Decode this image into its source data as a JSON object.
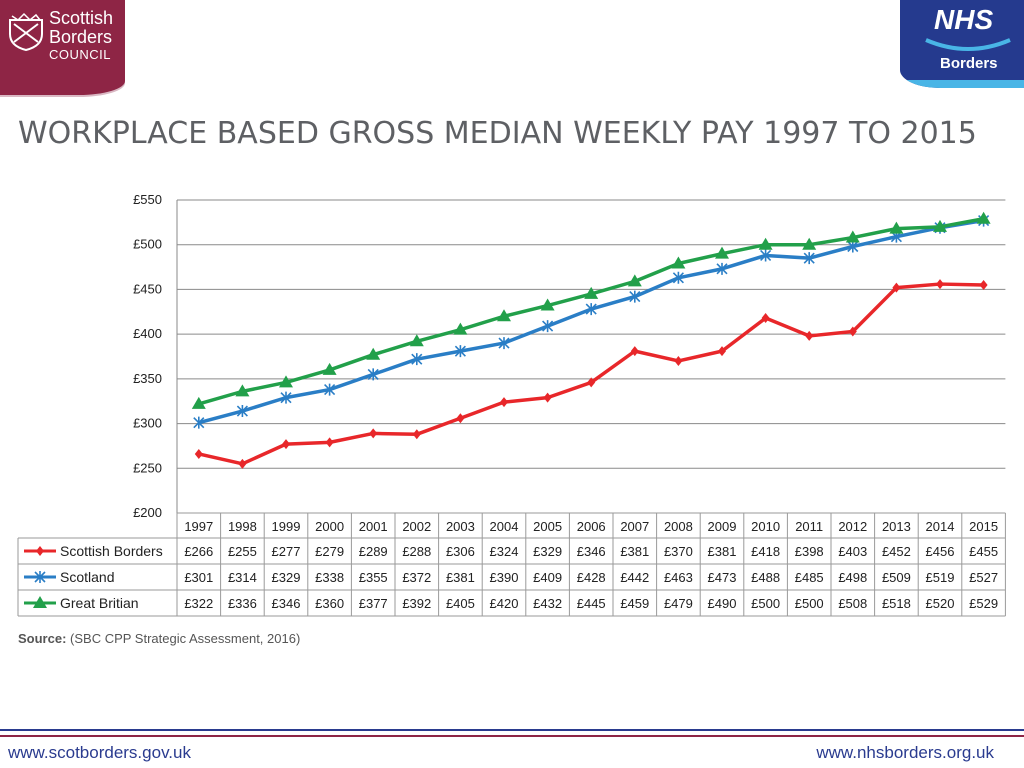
{
  "logos": {
    "sbc": {
      "line1": "Scottish",
      "line2": "Borders",
      "line3": "COUNCIL"
    },
    "nhs": {
      "name": "NHS",
      "sub": "Borders"
    }
  },
  "title": "WORKPLACE BASED GROSS MEDIAN WEEKLY PAY 1997 TO 2015",
  "source": {
    "label": "Source:",
    "text": "(SBC CPP Strategic Assessment, 2016)"
  },
  "footer": {
    "left_link": "www.scotborders.gov.uk",
    "right_link": "www.nhsborders.org.uk"
  },
  "colors": {
    "red": "#e8272a",
    "blue": "#2a7ec6",
    "green": "#22a04a"
  },
  "chart_data": {
    "type": "line",
    "categories": [
      "1997",
      "1998",
      "1999",
      "2000",
      "2001",
      "2002",
      "2003",
      "2004",
      "2005",
      "2006",
      "2007",
      "2008",
      "2009",
      "2010",
      "2011",
      "2012",
      "2013",
      "2014",
      "2015"
    ],
    "ylim": [
      200,
      550
    ],
    "yticks": [
      "£200",
      "£250",
      "£300",
      "£350",
      "£400",
      "£450",
      "£500",
      "£550"
    ],
    "ytick_values": [
      200,
      250,
      300,
      350,
      400,
      450,
      500,
      550
    ],
    "grid": true,
    "series": [
      {
        "name": "Scottish Borders",
        "marker": "diamond",
        "color": "#e8272a",
        "values": [
          266,
          255,
          277,
          279,
          289,
          288,
          306,
          324,
          329,
          346,
          381,
          370,
          381,
          418,
          398,
          403,
          452,
          456,
          455
        ],
        "labels": [
          "£266",
          "£255",
          "£277",
          "£279",
          "£289",
          "£288",
          "£306",
          "£324",
          "£329",
          "£346",
          "£381",
          "£370",
          "£381",
          "£418",
          "£398",
          "£403",
          "£452",
          "£456",
          "£455"
        ]
      },
      {
        "name": "Scotland",
        "marker": "star",
        "color": "#2a7ec6",
        "values": [
          301,
          314,
          329,
          338,
          355,
          372,
          381,
          390,
          409,
          428,
          442,
          463,
          473,
          488,
          485,
          498,
          509,
          519,
          527
        ],
        "labels": [
          "£301",
          "£314",
          "£329",
          "£338",
          "£355",
          "£372",
          "£381",
          "£390",
          "£409",
          "£428",
          "£442",
          "£463",
          "£473",
          "£488",
          "£485",
          "£498",
          "£509",
          "£519",
          "£527"
        ]
      },
      {
        "name": "Great Britian",
        "marker": "triangle",
        "color": "#22a04a",
        "values": [
          322,
          336,
          346,
          360,
          377,
          392,
          405,
          420,
          432,
          445,
          459,
          479,
          490,
          500,
          500,
          508,
          518,
          520,
          529
        ],
        "labels": [
          "£322",
          "£336",
          "£346",
          "£360",
          "£377",
          "£392",
          "£405",
          "£420",
          "£432",
          "£445",
          "£459",
          "£479",
          "£490",
          "£500",
          "£500",
          "£508",
          "£518",
          "£520",
          "£529"
        ]
      }
    ]
  }
}
